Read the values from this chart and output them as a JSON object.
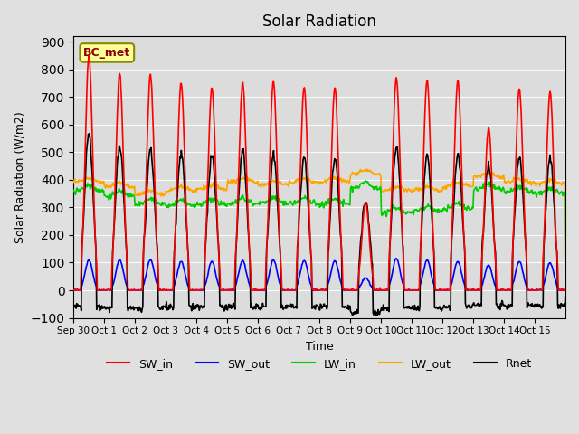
{
  "title": "Solar Radiation",
  "xlabel": "Time",
  "ylabel": "Solar Radiation (W/m2)",
  "ylim": [
    -100,
    920
  ],
  "yticks": [
    -100,
    0,
    100,
    200,
    300,
    400,
    500,
    600,
    700,
    800,
    900
  ],
  "num_days": 16,
  "annotation_text": "BC_met",
  "legend_labels": [
    "SW_in",
    "SW_out",
    "LW_in",
    "LW_out",
    "Rnet"
  ],
  "colors": {
    "SW_in": "#FF0000",
    "SW_out": "#0000FF",
    "LW_in": "#00CC00",
    "LW_out": "#FFA500",
    "Rnet": "#000000"
  },
  "n_points_per_day": 48,
  "sw_in_peaks": [
    850,
    785,
    780,
    750,
    735,
    755,
    755,
    735,
    735,
    320,
    770,
    760,
    760,
    590,
    730,
    720
  ],
  "sw_out_peaks": [
    110,
    110,
    110,
    105,
    105,
    108,
    110,
    108,
    108,
    45,
    115,
    110,
    105,
    90,
    105,
    100
  ],
  "lw_in_base": [
    360,
    340,
    310,
    305,
    310,
    315,
    315,
    315,
    310,
    370,
    280,
    285,
    295,
    365,
    355,
    350
  ],
  "lw_out_base": [
    390,
    375,
    345,
    360,
    365,
    390,
    380,
    390,
    390,
    420,
    360,
    360,
    375,
    410,
    390,
    385
  ],
  "rnet_peaks": [
    570,
    530,
    510,
    500,
    490,
    505,
    490,
    485,
    480,
    320,
    520,
    490,
    490,
    460,
    490,
    480
  ],
  "rnet_night_base": [
    -60,
    -65,
    -65,
    -60,
    -60,
    -60,
    -60,
    -60,
    -60,
    -80,
    -65,
    -65,
    -60,
    -55,
    -55,
    -55
  ],
  "tick_labels": [
    "Sep 30",
    "Oct 1",
    "Oct 2",
    "Oct 3",
    "Oct 4",
    "Oct 5",
    "Oct 6",
    "Oct 7",
    "Oct 8",
    "Oct 9",
    "Oct 10",
    "Oct 11",
    "Oct 12",
    "Oct 13",
    "Oct 14",
    "Oct 15"
  ]
}
